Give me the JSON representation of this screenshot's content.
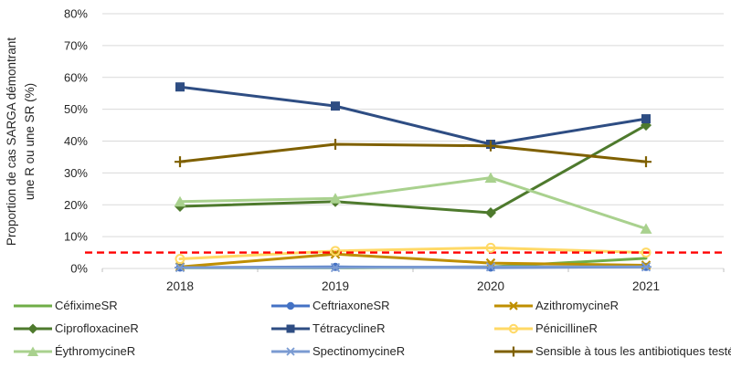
{
  "chart_data": {
    "type": "line",
    "x": [
      "2018",
      "2019",
      "2020",
      "2021"
    ],
    "ylabel_line1": "Proportion de cas SARGA démontrant",
    "ylabel_line2": "une R ou une SR (%)",
    "ylim": [
      0,
      80
    ],
    "ytick_step": 10,
    "ytick_suffix": "%",
    "grid": "horizontal",
    "legend_position": "bottom",
    "colors": {
      "gridline": "#D9D9D9",
      "axis_text": "#262626",
      "threshold": "#FF0000"
    },
    "threshold": {
      "value": 5,
      "color": "#FF0000",
      "style": "dashed"
    },
    "series": [
      {
        "name": "CéfiximeSR",
        "color": "#70AD47",
        "marker": "none",
        "values": [
          0.2,
          0.2,
          0.5,
          3.2
        ]
      },
      {
        "name": "CeftriaxoneSR",
        "color": "#4472C4",
        "marker": "circle",
        "values": [
          0.3,
          0.5,
          0.3,
          0.5
        ]
      },
      {
        "name": "AzithromycineR",
        "color": "#BF8F00",
        "marker": "x",
        "values": [
          0.5,
          4.5,
          1.7,
          1.0
        ]
      },
      {
        "name": "CiprofloxacineR",
        "color": "#4E7A2D",
        "marker": "diamond",
        "values": [
          19.5,
          21,
          17.5,
          45
        ]
      },
      {
        "name": "TétracyclineR",
        "color": "#2E4D83",
        "marker": "square",
        "values": [
          57,
          51,
          39,
          47
        ]
      },
      {
        "name": "PénicillineR",
        "color": "#FFD966",
        "marker": "open-circle",
        "values": [
          3,
          5.5,
          6.5,
          5
        ]
      },
      {
        "name": "ÉythromycineR",
        "color": "#A9D18E",
        "marker": "triangle",
        "values": [
          21,
          22,
          28.5,
          12.5
        ]
      },
      {
        "name": "SpectinomycineR",
        "color": "#7B9BD2",
        "marker": "star",
        "values": [
          0.3,
          0.3,
          0.5,
          0.5
        ]
      },
      {
        "name": "Sensible à tous les antibiotiques testés",
        "color": "#7F6000",
        "marker": "plus",
        "values": [
          33.5,
          39,
          38.5,
          33.5
        ]
      }
    ]
  }
}
